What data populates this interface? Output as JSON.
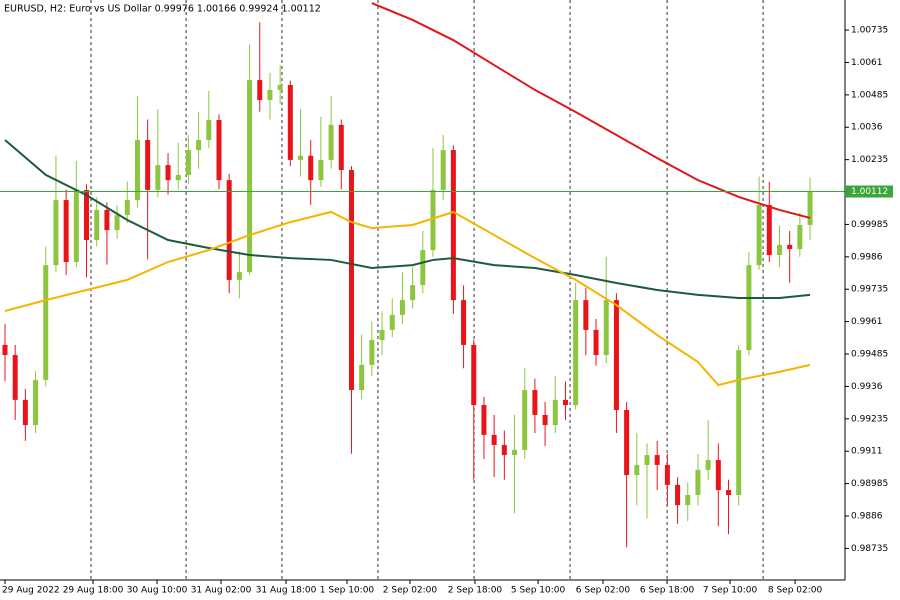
{
  "chart_data": {
    "type": "candlestick",
    "title": "EURUSD, H2:  Euro vs US Dollar  0.99976 1.00166 0.99924 1.00112",
    "up_color": "#8cc63f",
    "down_color": "#e8141a",
    "open": [
      0.9952,
      0.99481,
      0.99308,
      0.99211,
      0.99385,
      0.99828,
      1.00079,
      0.9984,
      1.00118,
      0.99925,
      1.00041,
      0.99963,
      1.00021,
      1.00079,
      1.00311,
      1.00118,
      1.00214,
      1.00156,
      1.00176,
      1.00272,
      1.00311,
      1.00388,
      1.00156,
      0.99771,
      0.99801,
      1.00542,
      1.00465,
      1.00504,
      1.00523,
      1.00234,
      1.0025,
      1.00156,
      1.00234,
      1.00369,
      1.00195,
      0.99346,
      0.99443,
      0.99539,
      0.99578,
      0.99636,
      0.99693,
      0.99751,
      0.99886,
      1.00118,
      1.00272,
      0.99693,
      0.9952,
      0.99288,
      0.99173,
      0.99134,
      0.99095,
      0.99115,
      0.99346,
      0.9925,
      0.99211,
      0.99308,
      0.99288,
      0.99693,
      0.99578,
      0.99481,
      0.99693,
      0.99269,
      0.99018,
      0.99057,
      0.99095,
      0.99057,
      0.9898,
      0.98902,
      0.98941,
      0.99038,
      0.99076,
      0.9896,
      0.98941,
      0.995,
      0.99828,
      1.0006,
      0.99867,
      0.99906,
      0.9989,
      0.99983
    ],
    "high": [
      0.996,
      0.9952,
      0.9935,
      0.9942,
      0.999,
      1.0025,
      1.0012,
      1.0023,
      1.0014,
      1.0009,
      1.0007,
      1.0006,
      1.0015,
      1.0048,
      1.0039,
      1.0043,
      1.0026,
      1.003,
      1.0033,
      1.0042,
      1.005,
      1.0041,
      1.0018,
      0.9988,
      1.0068,
      1.00765,
      1.0057,
      1.006,
      1.0054,
      1.0043,
      1.0031,
      1.004,
      1.0048,
      1.0039,
      1.0021,
      0.9956,
      0.9961,
      0.9965,
      0.997,
      0.998,
      0.9982,
      0.9996,
      1.0028,
      1.0033,
      1.0029,
      0.9975,
      0.9954,
      0.9932,
      0.9925,
      0.9919,
      0.9925,
      0.9943,
      0.9939,
      0.993,
      0.994,
      0.9938,
      0.9976,
      0.9974,
      0.9962,
      0.9986,
      0.9972,
      0.993,
      0.9918,
      0.9914,
      0.9915,
      0.991,
      0.9901,
      0.9899,
      0.991,
      0.9923,
      0.9914,
      0.99,
      0.9952,
      0.9988,
      1.0017,
      1.0015,
      0.9998,
      0.9996,
      1.0003,
      1.00166
    ],
    "low": [
      0.9938,
      0.9923,
      0.9915,
      0.9918,
      0.9936,
      0.998,
      0.9979,
      0.9982,
      0.9978,
      0.999,
      0.9983,
      0.9993,
      0.9999,
      1.0005,
      0.9985,
      1.0009,
      1.001,
      1.0012,
      1.0014,
      1.002,
      1.0028,
      1.0012,
      0.9972,
      0.997,
      0.9979,
      1.0042,
      1.0039,
      1.0045,
      1.0021,
      1.0017,
      1.0006,
      1.0013,
      1.002,
      1.0012,
      0.991,
      0.9931,
      0.994,
      0.9948,
      0.9955,
      0.996,
      0.9966,
      0.9972,
      0.9986,
      1.0008,
      0.9964,
      0.9943,
      0.99,
      0.9908,
      0.9901,
      0.99,
      0.9887,
      0.9908,
      0.9918,
      0.9913,
      0.9918,
      0.9923,
      0.9927,
      0.9948,
      0.9944,
      0.9945,
      0.9918,
      0.9874,
      0.989,
      0.9885,
      0.9896,
      0.989,
      0.9883,
      0.9884,
      0.989,
      0.99,
      0.9882,
      0.9879,
      0.989,
      0.9948,
      0.9981,
      0.9984,
      0.9982,
      0.9976,
      0.9986,
      0.99924
    ],
    "close": [
      0.99481,
      0.99308,
      0.99211,
      0.99385,
      0.99828,
      1.00079,
      0.9984,
      1.00118,
      0.99925,
      1.00041,
      0.99963,
      1.00021,
      1.00079,
      1.00311,
      1.00118,
      1.00214,
      1.00156,
      1.00176,
      1.00272,
      1.00311,
      1.00388,
      1.00156,
      0.99771,
      0.99801,
      1.00542,
      1.00465,
      1.00504,
      1.00523,
      1.00234,
      1.0025,
      1.00156,
      1.00234,
      1.00369,
      1.00195,
      0.99346,
      0.99443,
      0.99539,
      0.99578,
      0.99636,
      0.99693,
      0.99751,
      0.99886,
      1.00118,
      1.00272,
      0.99693,
      0.9952,
      0.99288,
      0.99173,
      0.99134,
      0.99095,
      0.99115,
      0.99346,
      0.9925,
      0.99211,
      0.99308,
      0.99288,
      0.99693,
      0.99578,
      0.99481,
      0.99693,
      0.99269,
      0.99018,
      0.99057,
      0.99095,
      0.99057,
      0.9898,
      0.98902,
      0.98941,
      0.99038,
      0.99076,
      0.9896,
      0.98941,
      0.995,
      0.99828,
      1.0006,
      0.99867,
      0.99906,
      0.9989,
      0.99983,
      1.00112
    ],
    "series": [
      {
        "color": "#1f5a3c",
        "x": [
          0,
          4,
          8,
          12,
          16,
          20,
          24,
          28,
          32,
          36,
          40,
          42,
          44,
          48,
          52,
          56,
          60,
          64,
          68,
          72,
          76,
          79
        ],
        "values": [
          1.00311,
          1.00176,
          1.00098,
          1.00002,
          0.99925,
          0.99894,
          0.99867,
          0.99855,
          0.99848,
          0.99817,
          0.99828,
          0.99848,
          0.99855,
          0.99828,
          0.99817,
          0.9979,
          0.99759,
          0.99732,
          0.99713,
          0.99701,
          0.99701,
          0.99713
        ]
      },
      {
        "color": "#f4b400",
        "x": [
          0,
          4,
          8,
          12,
          16,
          20,
          24,
          28,
          32,
          34,
          36,
          40,
          44,
          48,
          52,
          56,
          60,
          64,
          68,
          70,
          72,
          76,
          79
        ],
        "values": [
          0.99651,
          0.99693,
          0.99732,
          0.99771,
          0.9984,
          0.99886,
          0.99944,
          0.99994,
          1.00033,
          0.99994,
          0.99971,
          0.99983,
          1.00033,
          0.99944,
          0.99855,
          0.99771,
          0.99674,
          0.99558,
          0.99454,
          0.99365,
          0.99385,
          0.99416,
          0.99443
        ]
      },
      {
        "color": "#e0161c",
        "x": [
          36,
          40,
          44,
          48,
          52,
          56,
          60,
          64,
          68,
          72,
          76,
          79
        ],
        "values": [
          1.00839,
          1.00774,
          1.00696,
          1.006,
          1.00504,
          1.00419,
          1.0033,
          1.00241,
          1.00156,
          1.00091,
          1.00041,
          1.0001
        ]
      }
    ],
    "last_price": 1.00112,
    "last_price_color": "#3aa63a",
    "ylim": [
      0.98613,
      1.00851
    ],
    "yticks": [
      0.98735,
      0.9886,
      0.98985,
      0.9911,
      0.99235,
      0.9936,
      0.99485,
      0.9961,
      0.99735,
      0.9986,
      0.99985,
      1.00235,
      1.0036,
      1.00485,
      1.0061,
      1.00735
    ],
    "xlim": [
      -0.49,
      82.43
    ],
    "xticks": [
      {
        "value": 0,
        "label": "29 Aug 2022"
      },
      {
        "value": 8.64,
        "label": "29 Aug 18:00"
      },
      {
        "value": 14.92,
        "label": "30 Aug 10:00"
      },
      {
        "value": 21.2,
        "label": "31 Aug 02:00"
      },
      {
        "value": 27.58,
        "label": "31 Aug 18:00"
      },
      {
        "value": 33.56,
        "label": "1 Sep 10:00"
      },
      {
        "value": 39.74,
        "label": "2 Sep 02:00"
      },
      {
        "value": 46.12,
        "label": "2 Sep 18:00"
      },
      {
        "value": 52.31,
        "label": "5 Sep 10:00"
      },
      {
        "value": 58.68,
        "label": "6 Sep 02:00"
      },
      {
        "value": 64.97,
        "label": "6 Sep 18:00"
      },
      {
        "value": 71.15,
        "label": "7 Sep 10:00"
      },
      {
        "value": 77.53,
        "label": "8 Sep 02:00"
      }
    ],
    "vgrid": [
      8.44,
      17.77,
      27.18,
      36.6,
      46.03,
      55.45,
      64.97,
      74.39
    ]
  }
}
